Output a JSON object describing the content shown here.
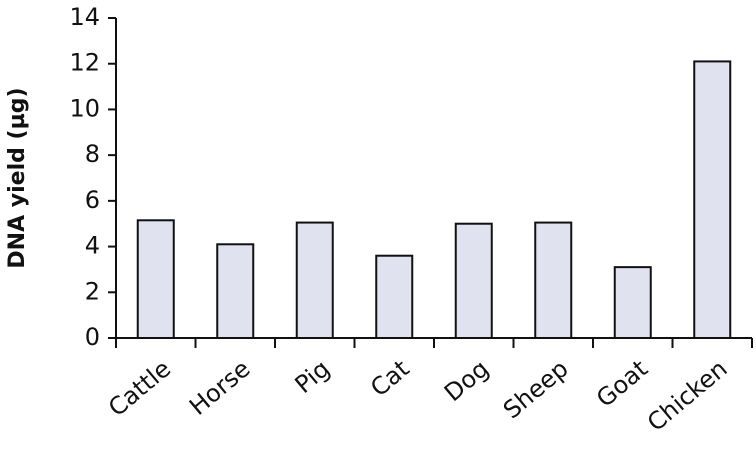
{
  "chart_data": {
    "type": "bar",
    "y_label": "DNA yield (µg)",
    "categories": [
      "Cattle",
      "Horse",
      "Pig",
      "Cat",
      "Dog",
      "Sheep",
      "Goat",
      "Chicken"
    ],
    "values": [
      5.15,
      4.1,
      5.05,
      3.6,
      5.0,
      5.05,
      3.1,
      12.1
    ],
    "color": "#e0e2ef",
    "ylim": [
      0,
      14
    ],
    "yticks": [
      0,
      2,
      4,
      6,
      8,
      10,
      12,
      14
    ],
    "grid": false
  }
}
